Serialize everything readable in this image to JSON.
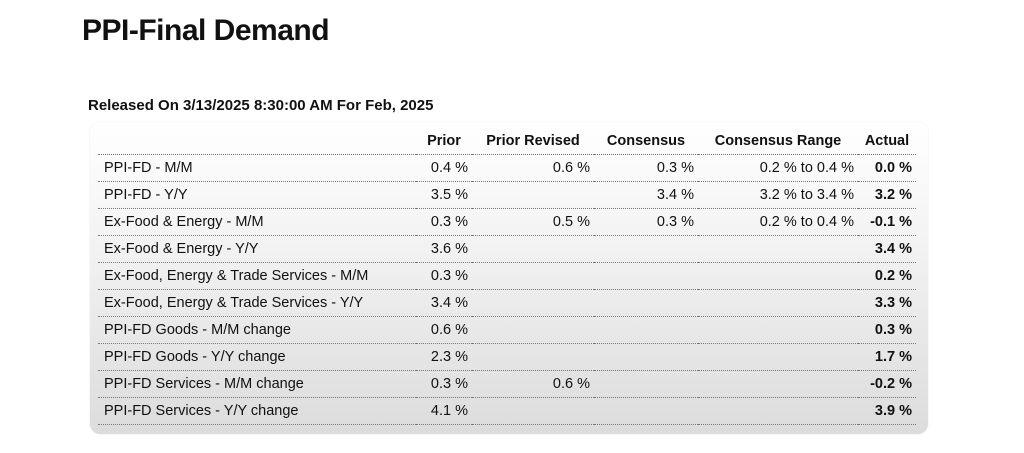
{
  "page_title": "PPI-Final Demand",
  "release_line": "Released On 3/13/2025 8:30:00 AM For Feb, 2025",
  "table": {
    "headers": {
      "label": "",
      "prior": "Prior",
      "prior_revised": "Prior Revised",
      "consensus": "Consensus",
      "consensus_range": "Consensus Range",
      "actual": "Actual"
    },
    "rows": [
      {
        "label": "PPI-FD - M/M",
        "prior": "0.4 %",
        "prior_revised": "0.6 %",
        "consensus": "0.3 %",
        "consensus_range": "0.2 % to 0.4 %",
        "actual": "0.0 %"
      },
      {
        "label": "PPI-FD - Y/Y",
        "prior": "3.5 %",
        "prior_revised": "",
        "consensus": "3.4 %",
        "consensus_range": "3.2 % to 3.4 %",
        "actual": "3.2 %"
      },
      {
        "label": "Ex-Food & Energy - M/M",
        "prior": "0.3 %",
        "prior_revised": "0.5 %",
        "consensus": "0.3 %",
        "consensus_range": "0.2 % to 0.4 %",
        "actual": "-0.1 %"
      },
      {
        "label": "Ex-Food & Energy - Y/Y",
        "prior": "3.6 %",
        "prior_revised": "",
        "consensus": "",
        "consensus_range": "",
        "actual": "3.4 %"
      },
      {
        "label": "Ex-Food, Energy & Trade Services - M/M",
        "prior": "0.3 %",
        "prior_revised": "",
        "consensus": "",
        "consensus_range": "",
        "actual": "0.2 %"
      },
      {
        "label": "Ex-Food, Energy & Trade Services - Y/Y",
        "prior": "3.4 %",
        "prior_revised": "",
        "consensus": "",
        "consensus_range": "",
        "actual": "3.3 %"
      },
      {
        "label": "PPI-FD Goods - M/M change",
        "prior": "0.6 %",
        "prior_revised": "",
        "consensus": "",
        "consensus_range": "",
        "actual": "0.3 %"
      },
      {
        "label": "PPI-FD Goods - Y/Y change",
        "prior": "2.3 %",
        "prior_revised": "",
        "consensus": "",
        "consensus_range": "",
        "actual": "1.7 %"
      },
      {
        "label": "PPI-FD Services - M/M change",
        "prior": "0.3 %",
        "prior_revised": "0.6 %",
        "consensus": "",
        "consensus_range": "",
        "actual": "-0.2 %"
      },
      {
        "label": "PPI-FD Services - Y/Y change",
        "prior": "4.1 %",
        "prior_revised": "",
        "consensus": "",
        "consensus_range": "",
        "actual": "3.9 %"
      }
    ]
  }
}
